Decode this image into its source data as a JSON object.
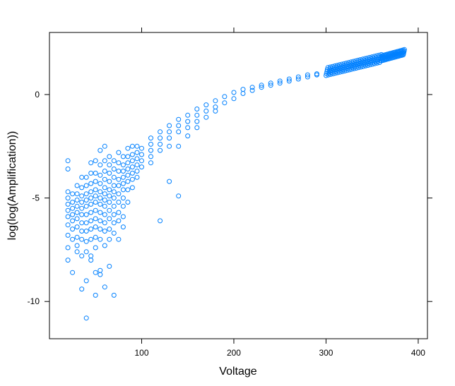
{
  "chart_data": {
    "type": "scatter",
    "title": "",
    "xlabel": "Voltage",
    "ylabel": "log(log(Amplification))",
    "xlim": [
      0,
      410
    ],
    "ylim": [
      -11.8,
      3.0
    ],
    "x_ticks": [
      100,
      200,
      300,
      400
    ],
    "y_ticks": [
      0,
      -5,
      -10
    ],
    "grid": false,
    "marker": "open-circle",
    "point_color": "#0080ff",
    "series": [
      {
        "points": [
          [
            20,
            -4.7
          ],
          [
            20,
            -5.0
          ],
          [
            20,
            -5.3
          ],
          [
            20,
            -5.6
          ],
          [
            20,
            -5.9
          ],
          [
            20,
            -6.3
          ],
          [
            20,
            -6.8
          ],
          [
            20,
            -7.4
          ],
          [
            20,
            -8.0
          ],
          [
            20,
            -3.2
          ],
          [
            20,
            -3.6
          ],
          [
            25,
            -4.8
          ],
          [
            25,
            -5.2
          ],
          [
            25,
            -5.5
          ],
          [
            25,
            -5.8
          ],
          [
            25,
            -6.1
          ],
          [
            25,
            -6.5
          ],
          [
            25,
            -7.0
          ],
          [
            25,
            -8.6
          ],
          [
            30,
            -4.4
          ],
          [
            30,
            -4.8
          ],
          [
            30,
            -5.1
          ],
          [
            30,
            -5.4
          ],
          [
            30,
            -5.7
          ],
          [
            30,
            -6.0
          ],
          [
            30,
            -6.4
          ],
          [
            30,
            -6.9
          ],
          [
            30,
            -7.3
          ],
          [
            30,
            -7.6
          ],
          [
            35,
            -4.0
          ],
          [
            35,
            -4.5
          ],
          [
            35,
            -4.9
          ],
          [
            35,
            -5.2
          ],
          [
            35,
            -5.5
          ],
          [
            35,
            -5.8
          ],
          [
            35,
            -6.2
          ],
          [
            35,
            -6.6
          ],
          [
            35,
            -7.0
          ],
          [
            35,
            -7.8
          ],
          [
            35,
            -9.4
          ],
          [
            40,
            -4.0
          ],
          [
            40,
            -4.4
          ],
          [
            40,
            -4.8
          ],
          [
            40,
            -5.1
          ],
          [
            40,
            -5.4
          ],
          [
            40,
            -5.8
          ],
          [
            40,
            -6.2
          ],
          [
            40,
            -6.6
          ],
          [
            40,
            -7.1
          ],
          [
            40,
            -7.6
          ],
          [
            40,
            -9.0
          ],
          [
            40,
            -10.8
          ],
          [
            45,
            -3.3
          ],
          [
            45,
            -3.8
          ],
          [
            45,
            -4.3
          ],
          [
            45,
            -4.7
          ],
          [
            45,
            -5.0
          ],
          [
            45,
            -5.3
          ],
          [
            45,
            -5.7
          ],
          [
            45,
            -6.1
          ],
          [
            45,
            -6.5
          ],
          [
            45,
            -7.0
          ],
          [
            45,
            -7.8
          ],
          [
            45,
            -8.0
          ],
          [
            50,
            -3.2
          ],
          [
            50,
            -3.8
          ],
          [
            50,
            -4.2
          ],
          [
            50,
            -4.6
          ],
          [
            50,
            -4.9
          ],
          [
            50,
            -5.2
          ],
          [
            50,
            -5.6
          ],
          [
            50,
            -6.0
          ],
          [
            50,
            -6.4
          ],
          [
            50,
            -6.9
          ],
          [
            50,
            -7.4
          ],
          [
            50,
            -8.6
          ],
          [
            50,
            -9.7
          ],
          [
            55,
            -2.7
          ],
          [
            55,
            -3.4
          ],
          [
            55,
            -3.9
          ],
          [
            55,
            -4.3
          ],
          [
            55,
            -4.7
          ],
          [
            55,
            -5.0
          ],
          [
            55,
            -5.3
          ],
          [
            55,
            -5.7
          ],
          [
            55,
            -6.1
          ],
          [
            55,
            -6.5
          ],
          [
            55,
            -7.0
          ],
          [
            55,
            -8.5
          ],
          [
            55,
            -8.7
          ],
          [
            60,
            -2.5
          ],
          [
            60,
            -3.2
          ],
          [
            60,
            -3.7
          ],
          [
            60,
            -4.1
          ],
          [
            60,
            -4.5
          ],
          [
            60,
            -4.8
          ],
          [
            60,
            -5.1
          ],
          [
            60,
            -5.4
          ],
          [
            60,
            -5.8
          ],
          [
            60,
            -6.2
          ],
          [
            60,
            -6.6
          ],
          [
            60,
            -7.3
          ],
          [
            60,
            -9.3
          ],
          [
            65,
            -3.0
          ],
          [
            65,
            -3.4
          ],
          [
            65,
            -3.8
          ],
          [
            65,
            -4.2
          ],
          [
            65,
            -4.6
          ],
          [
            65,
            -4.9
          ],
          [
            65,
            -5.2
          ],
          [
            65,
            -5.6
          ],
          [
            65,
            -6.0
          ],
          [
            65,
            -6.5
          ],
          [
            65,
            -7.0
          ],
          [
            65,
            -8.3
          ],
          [
            70,
            -3.2
          ],
          [
            70,
            -3.6
          ],
          [
            70,
            -4.0
          ],
          [
            70,
            -4.4
          ],
          [
            70,
            -4.7
          ],
          [
            70,
            -5.0
          ],
          [
            70,
            -5.4
          ],
          [
            70,
            -5.8
          ],
          [
            70,
            -6.2
          ],
          [
            70,
            -6.7
          ],
          [
            70,
            -9.7
          ],
          [
            75,
            -2.8
          ],
          [
            75,
            -3.3
          ],
          [
            75,
            -3.7
          ],
          [
            75,
            -4.1
          ],
          [
            75,
            -4.4
          ],
          [
            75,
            -4.8
          ],
          [
            75,
            -5.2
          ],
          [
            75,
            -5.7
          ],
          [
            75,
            -6.1
          ],
          [
            75,
            -7.0
          ],
          [
            80,
            -3.0
          ],
          [
            80,
            -3.4
          ],
          [
            80,
            -3.7
          ],
          [
            80,
            -4.0
          ],
          [
            80,
            -4.3
          ],
          [
            80,
            -4.6
          ],
          [
            80,
            -5.0
          ],
          [
            80,
            -5.4
          ],
          [
            80,
            -5.9
          ],
          [
            80,
            -6.4
          ],
          [
            85,
            -2.6
          ],
          [
            85,
            -3.0
          ],
          [
            85,
            -3.3
          ],
          [
            85,
            -3.6
          ],
          [
            85,
            -3.9
          ],
          [
            85,
            -4.2
          ],
          [
            85,
            -4.6
          ],
          [
            85,
            -5.2
          ],
          [
            90,
            -2.5
          ],
          [
            90,
            -2.9
          ],
          [
            90,
            -3.2
          ],
          [
            90,
            -3.5
          ],
          [
            90,
            -3.8
          ],
          [
            90,
            -4.1
          ],
          [
            90,
            -4.5
          ],
          [
            95,
            -2.5
          ],
          [
            95,
            -2.8
          ],
          [
            95,
            -3.1
          ],
          [
            95,
            -3.4
          ],
          [
            95,
            -3.7
          ],
          [
            95,
            -4.0
          ],
          [
            100,
            -2.6
          ],
          [
            100,
            -2.9
          ],
          [
            100,
            -3.2
          ],
          [
            100,
            -3.5
          ],
          [
            110,
            -2.1
          ],
          [
            110,
            -2.4
          ],
          [
            110,
            -2.7
          ],
          [
            110,
            -3.0
          ],
          [
            110,
            -3.3
          ],
          [
            120,
            -1.8
          ],
          [
            120,
            -2.1
          ],
          [
            120,
            -2.4
          ],
          [
            120,
            -2.7
          ],
          [
            120,
            -6.1
          ],
          [
            130,
            -1.5
          ],
          [
            130,
            -1.8
          ],
          [
            130,
            -2.1
          ],
          [
            130,
            -2.5
          ],
          [
            130,
            -4.2
          ],
          [
            140,
            -1.2
          ],
          [
            140,
            -1.5
          ],
          [
            140,
            -1.8
          ],
          [
            140,
            -2.5
          ],
          [
            140,
            -4.9
          ],
          [
            150,
            -1.0
          ],
          [
            150,
            -1.3
          ],
          [
            150,
            -1.6
          ],
          [
            150,
            -2.0
          ],
          [
            160,
            -0.7
          ],
          [
            160,
            -1.0
          ],
          [
            160,
            -1.3
          ],
          [
            160,
            -1.6
          ],
          [
            170,
            -0.5
          ],
          [
            170,
            -0.8
          ],
          [
            170,
            -1.1
          ],
          [
            180,
            -0.3
          ],
          [
            180,
            -0.6
          ],
          [
            180,
            -0.8
          ],
          [
            190,
            -0.1
          ],
          [
            190,
            -0.4
          ],
          [
            200,
            0.1
          ],
          [
            200,
            -0.2
          ],
          [
            210,
            0.25
          ],
          [
            210,
            0.05
          ],
          [
            220,
            0.35
          ],
          [
            220,
            0.2
          ],
          [
            230,
            0.45
          ],
          [
            230,
            0.35
          ],
          [
            240,
            0.55
          ],
          [
            240,
            0.45
          ],
          [
            250,
            0.65
          ],
          [
            250,
            0.55
          ],
          [
            260,
            0.75
          ],
          [
            260,
            0.65
          ],
          [
            270,
            0.85
          ],
          [
            270,
            0.75
          ],
          [
            280,
            0.95
          ],
          [
            280,
            0.85
          ],
          [
            290,
            1.0
          ],
          [
            290,
            0.95
          ]
        ],
        "bands": [
          {
            "x_start": 300,
            "x_end": 360,
            "y_start": 1.1,
            "y_end": 1.75,
            "spread": 0.18,
            "count": 120
          },
          {
            "x_start": 360,
            "x_end": 385,
            "y_start": 1.75,
            "y_end": 2.05,
            "spread": 0.12,
            "count": 80
          }
        ]
      }
    ]
  }
}
